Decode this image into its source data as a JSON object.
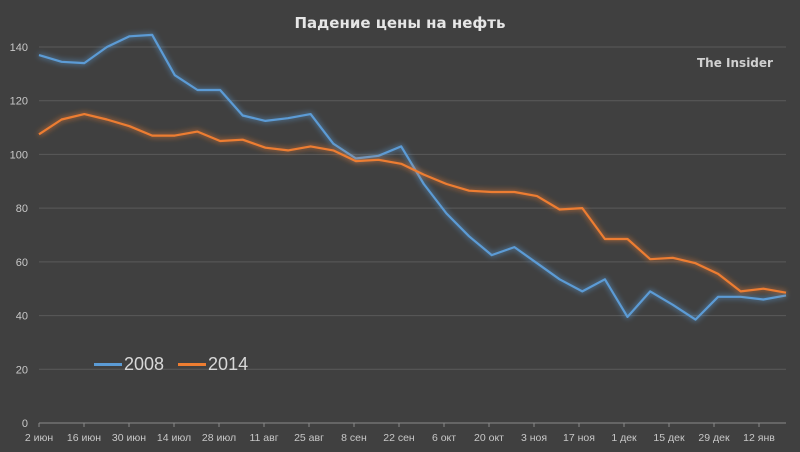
{
  "chart_data": {
    "type": "line",
    "title": "Падение цены на нефть",
    "annotation": "The Insider",
    "xlabel": "",
    "ylabel": "",
    "ylim": [
      0,
      140
    ],
    "yticks": [
      0,
      20,
      40,
      60,
      80,
      100,
      120,
      140
    ],
    "xtick_labels": [
      "2 июн",
      "16 июн",
      "30 июн",
      "14 июл",
      "28 июл",
      "11 авг",
      "25 авг",
      "8 сен",
      "22 сен",
      "6 окт",
      "20 окт",
      "3 ноя",
      "17 ноя",
      "1 дек",
      "15 дек",
      "29 дек",
      "12 янв"
    ],
    "grid": true,
    "legend_position": "bottom-left",
    "series": [
      {
        "name": "2008",
        "color": "#5b9bd5",
        "values": [
          137,
          134.5,
          134,
          140,
          144,
          144.5,
          129.5,
          124,
          124,
          114.5,
          112.5,
          113.5,
          115,
          104,
          98.5,
          99.5,
          103,
          89,
          78,
          69.5,
          62.5,
          65.5,
          59.5,
          53.5,
          49,
          53.5,
          39.5,
          49,
          44,
          38.5,
          47,
          47,
          46,
          47.5
        ]
      },
      {
        "name": "2014",
        "color": "#ed7d31",
        "values": [
          107.5,
          113,
          115,
          113,
          110.5,
          107,
          107,
          108.5,
          105,
          105.5,
          102.5,
          101.5,
          103,
          101.5,
          97.5,
          98,
          96.5,
          92.5,
          89,
          86.5,
          86,
          86,
          84.5,
          79.5,
          80,
          68.5,
          68.5,
          61,
          61.5,
          59.5,
          55.5,
          49,
          50,
          48.5
        ]
      }
    ]
  },
  "legend": {
    "items": [
      {
        "label": "2008",
        "color": "#5b9bd5"
      },
      {
        "label": "2014",
        "color": "#ed7d31"
      }
    ]
  }
}
